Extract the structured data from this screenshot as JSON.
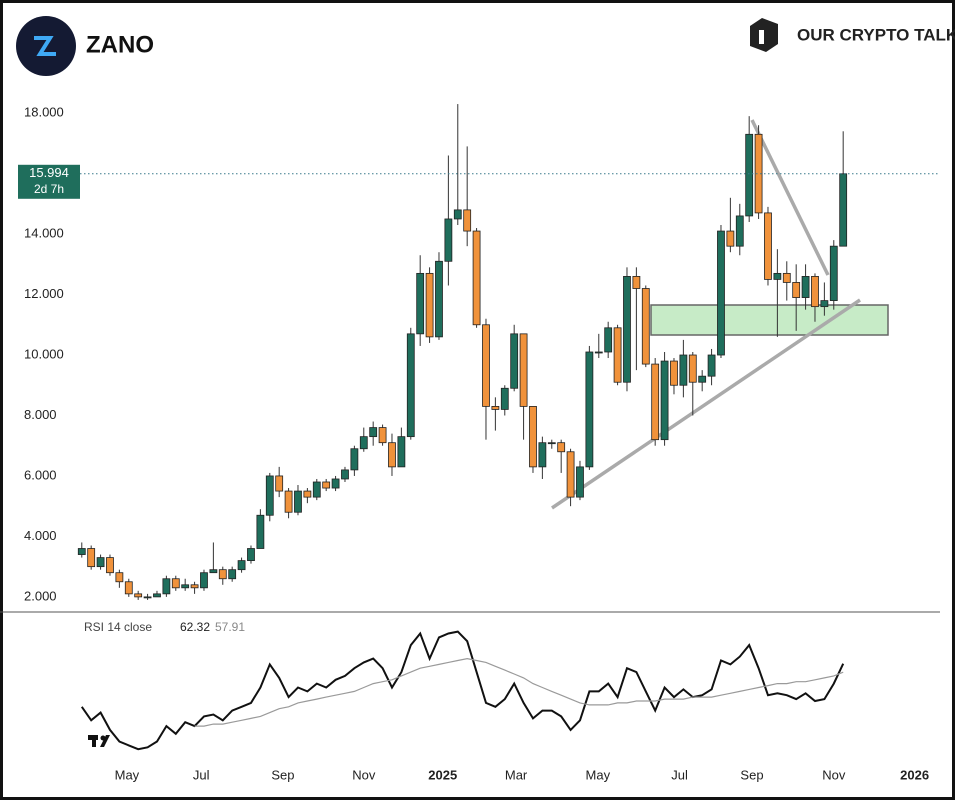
{
  "chart_data": [
    {
      "type": "candlestick",
      "title": "ZANO",
      "brand": "OUR CRYPTO TALK",
      "countdown": "2d 7h",
      "up_color": "#1f6e5c",
      "down_color": "#f0923b",
      "open": [
        3.4,
        3.6,
        3.0,
        3.3,
        2.8,
        2.5,
        2.1,
        2.0,
        2.0,
        2.1,
        2.6,
        2.3,
        2.4,
        2.3,
        2.8,
        2.9,
        2.6,
        2.9,
        3.2,
        3.6,
        4.7,
        6.0,
        5.5,
        4.8,
        5.5,
        5.3,
        5.8,
        5.6,
        5.9,
        6.2,
        6.9,
        7.3,
        7.6,
        7.1,
        6.3,
        7.3,
        10.7,
        12.7,
        10.6,
        13.1,
        14.5,
        14.8,
        14.1,
        11.0,
        8.3,
        8.2,
        8.9,
        10.7,
        8.3,
        6.3,
        7.1,
        7.1,
        6.8,
        5.3,
        6.3,
        10.1,
        10.1,
        10.9,
        9.1,
        12.6,
        12.2,
        9.7,
        7.2,
        9.8,
        9.0,
        10.0,
        9.1,
        9.3,
        10.0,
        14.1,
        13.6,
        14.6,
        17.3,
        14.7,
        12.5,
        12.7,
        12.4,
        11.9,
        12.6,
        11.6,
        11.8,
        13.6
      ],
      "high": [
        3.8,
        3.7,
        3.4,
        3.4,
        2.9,
        2.6,
        2.2,
        2.1,
        2.2,
        2.7,
        2.7,
        2.6,
        2.5,
        2.9,
        3.8,
        3.0,
        3.0,
        3.3,
        3.7,
        4.9,
        6.1,
        6.3,
        5.6,
        5.7,
        5.6,
        5.9,
        5.9,
        6.0,
        6.3,
        7.0,
        7.6,
        7.8,
        7.7,
        7.4,
        7.6,
        10.9,
        13.3,
        12.9,
        13.4,
        16.6,
        18.3,
        16.9,
        14.2,
        11.2,
        8.6,
        9.0,
        11.0,
        10.7,
        8.3,
        7.3,
        7.2,
        7.2,
        6.9,
        6.5,
        10.3,
        10.7,
        11.1,
        11.0,
        12.9,
        12.9,
        12.3,
        9.9,
        10.1,
        9.9,
        10.5,
        10.1,
        9.5,
        10.2,
        14.3,
        15.2,
        15.0,
        17.9,
        17.6,
        14.9,
        13.5,
        13.1,
        13.0,
        13.0,
        12.7,
        12.4,
        13.8,
        17.4
      ],
      "low": [
        3.3,
        2.9,
        2.9,
        2.7,
        2.3,
        2.0,
        1.9,
        1.9,
        2.0,
        2.0,
        2.2,
        2.2,
        2.1,
        2.2,
        2.8,
        2.4,
        2.5,
        2.8,
        3.1,
        3.6,
        4.5,
        5.3,
        4.6,
        4.7,
        5.1,
        5.2,
        5.5,
        5.5,
        5.8,
        6.0,
        6.8,
        7.0,
        7.0,
        6.0,
        6.3,
        7.2,
        10.3,
        10.4,
        10.5,
        12.3,
        14.3,
        13.6,
        10.9,
        7.2,
        7.5,
        8.0,
        8.8,
        7.2,
        6.1,
        5.9,
        6.9,
        6.1,
        5.0,
        5.2,
        6.2,
        9.9,
        9.9,
        9.0,
        8.8,
        9.5,
        9.6,
        7.0,
        7.0,
        8.7,
        8.6,
        8.0,
        8.8,
        9.0,
        9.9,
        13.4,
        13.3,
        14.4,
        14.5,
        12.3,
        10.6,
        11.8,
        10.8,
        11.5,
        11.1,
        11.3,
        11.5,
        13.6
      ],
      "close": [
        3.6,
        3.0,
        3.3,
        2.8,
        2.5,
        2.1,
        2.0,
        2.0,
        2.1,
        2.6,
        2.3,
        2.4,
        2.3,
        2.8,
        2.9,
        2.6,
        2.9,
        3.2,
        3.6,
        4.7,
        6.0,
        5.5,
        4.8,
        5.5,
        5.3,
        5.8,
        5.6,
        5.9,
        6.2,
        6.9,
        7.3,
        7.6,
        7.1,
        6.3,
        7.3,
        10.7,
        12.7,
        10.6,
        13.1,
        14.5,
        14.8,
        14.1,
        11.0,
        8.3,
        8.2,
        8.9,
        10.7,
        8.3,
        6.3,
        7.1,
        7.1,
        6.8,
        5.3,
        6.3,
        10.1,
        10.1,
        10.9,
        9.1,
        12.6,
        12.2,
        9.7,
        7.2,
        9.8,
        9.0,
        10.0,
        9.1,
        9.3,
        10.0,
        14.1,
        13.6,
        14.6,
        17.3,
        14.7,
        12.5,
        12.7,
        12.4,
        11.9,
        12.6,
        11.6,
        11.8,
        13.6,
        15.994
      ],
      "ylim": [
        1.5,
        18.6
      ],
      "yticks": [
        {
          "value": 2,
          "label": "2.000"
        },
        {
          "value": 4,
          "label": "4.000"
        },
        {
          "value": 6,
          "label": "6.000"
        },
        {
          "value": 8,
          "label": "8.000"
        },
        {
          "value": 10,
          "label": "10.000"
        },
        {
          "value": 12,
          "label": "12.000"
        },
        {
          "value": 14,
          "label": "14.000"
        },
        {
          "value": 18,
          "label": "18.000"
        }
      ],
      "xlim": [
        -8.7,
        91.3
      ],
      "xticks": [
        {
          "value": 4.8,
          "label": "May"
        },
        {
          "value": 12.7,
          "label": "Jul"
        },
        {
          "value": 21.4,
          "label": "Sep"
        },
        {
          "value": 30.0,
          "label": "Nov"
        },
        {
          "value": 38.4,
          "label": "2025"
        },
        {
          "value": 46.2,
          "label": "Mar"
        },
        {
          "value": 54.9,
          "label": "May"
        },
        {
          "value": 63.6,
          "label": "Jul"
        },
        {
          "value": 71.3,
          "label": "Sep"
        },
        {
          "value": 80.0,
          "label": "Nov"
        },
        {
          "value": 88.6,
          "label": "2026"
        }
      ]
    },
    {
      "type": "line",
      "title": "RSI 14 close",
      "ylim": [
        15,
        85
      ],
      "series": [
        {
          "name": "RSI",
          "color": "#111111",
          "values": [
            40,
            33,
            37,
            28,
            22,
            20,
            18,
            19,
            22,
            30,
            26,
            32,
            30,
            35,
            36,
            33,
            38,
            40,
            42,
            50,
            62,
            55,
            45,
            50,
            48,
            52,
            50,
            54,
            56,
            60,
            63,
            65,
            60,
            50,
            58,
            72,
            78,
            65,
            76,
            78,
            79,
            74,
            58,
            42,
            40,
            44,
            52,
            42,
            34,
            38,
            38,
            35,
            28,
            33,
            48,
            48,
            52,
            45,
            60,
            58,
            48,
            38,
            50,
            45,
            49,
            45,
            46,
            49,
            64,
            62,
            66,
            72,
            60,
            46,
            47,
            46,
            44,
            47,
            43,
            44,
            52,
            62.32
          ]
        },
        {
          "name": "RSI MA",
          "color": "#9a9a9a",
          "values": [
            null,
            null,
            null,
            null,
            null,
            null,
            null,
            null,
            null,
            null,
            null,
            null,
            30,
            30,
            31,
            31,
            32,
            33,
            34,
            35,
            37,
            39,
            40,
            42,
            43,
            44,
            45,
            46,
            47,
            48,
            50,
            52,
            53,
            54,
            56,
            58,
            60,
            61,
            62,
            63,
            64,
            65,
            64,
            63,
            61,
            59,
            57,
            55,
            52,
            50,
            48,
            46,
            44,
            42,
            41,
            41,
            41,
            42,
            42,
            43,
            43,
            43,
            44,
            44,
            44,
            45,
            45,
            45,
            46,
            47,
            48,
            49,
            50,
            51,
            52,
            52,
            53,
            53,
            54,
            55,
            56,
            57.91
          ]
        }
      ]
    }
  ]
}
